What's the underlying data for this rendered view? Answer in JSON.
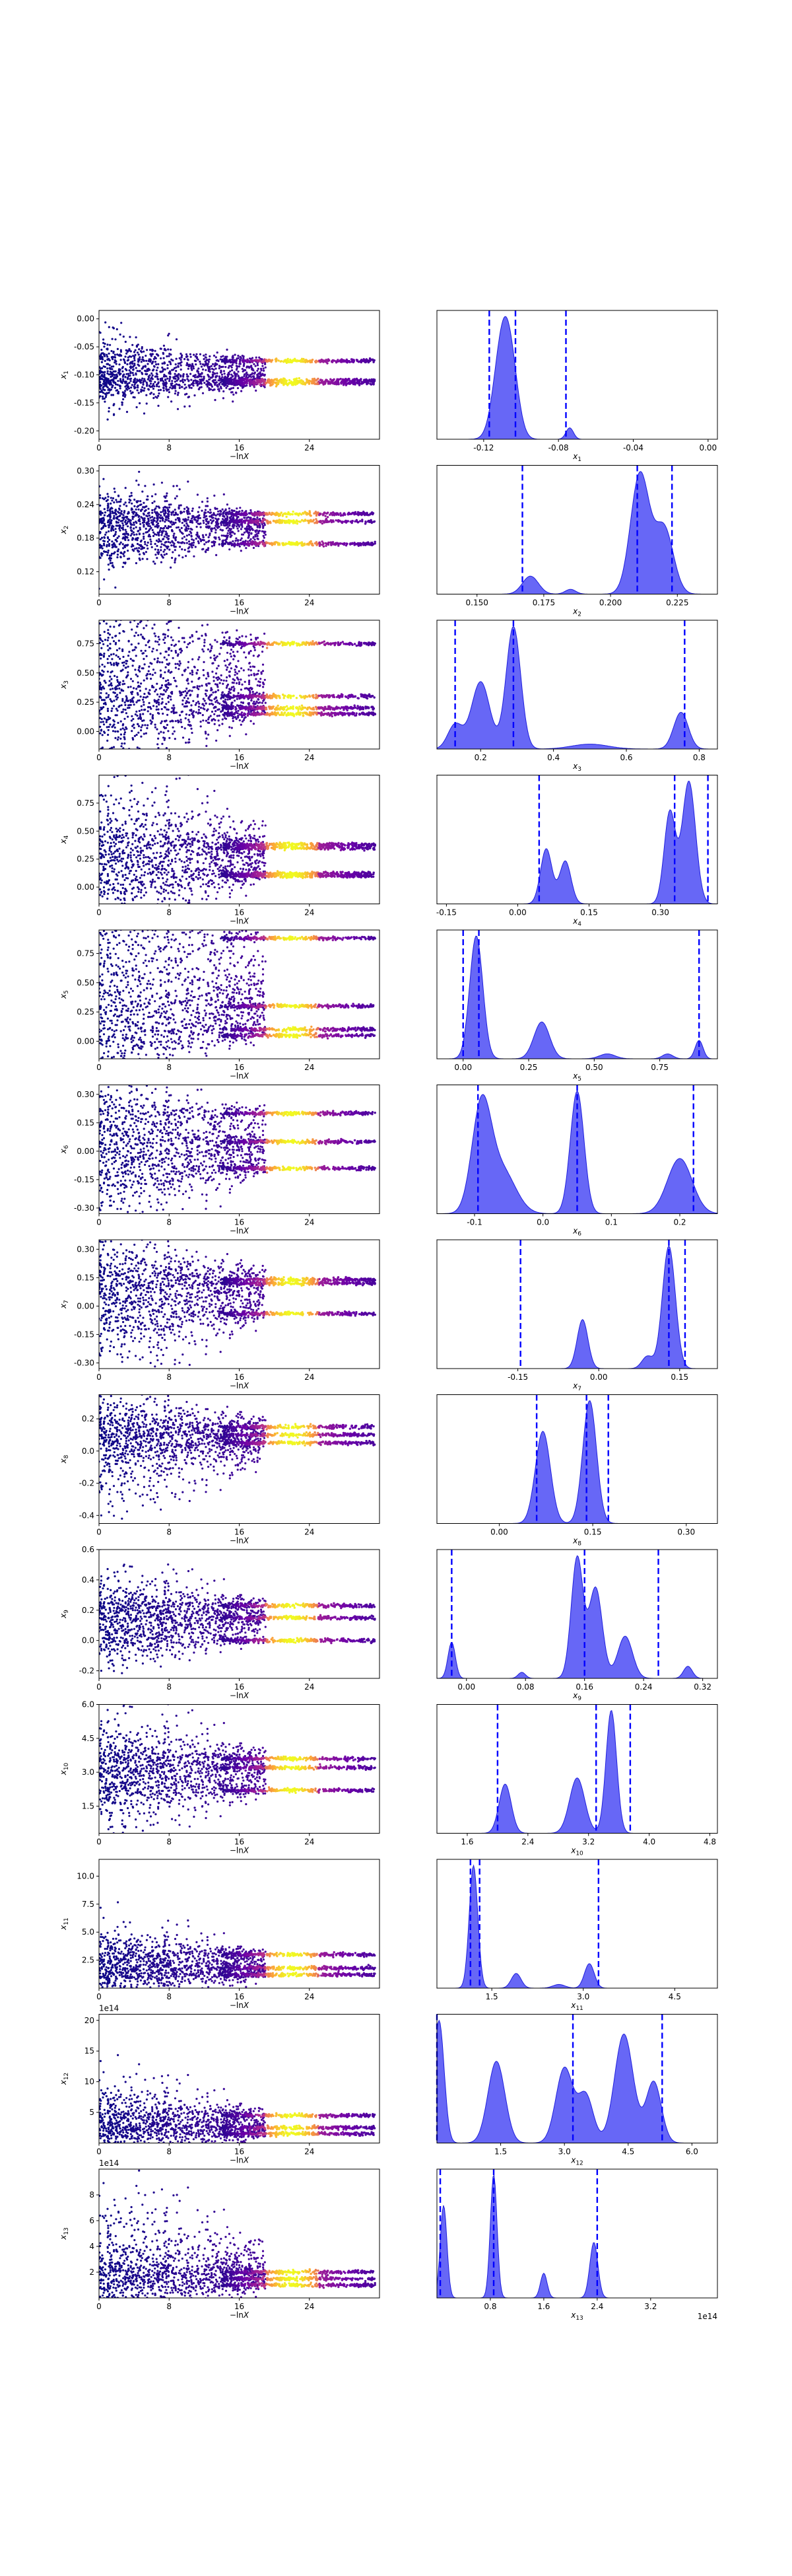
{
  "figure": {
    "description_colors": {
      "left_scatter_low": "#0d0887",
      "left_scatter_mid": "#cc4778",
      "left_scatter_high": "#f0f921",
      "kde_fill": "#4c4cf5",
      "kde_line": "#1f1fdd",
      "quantile_line": "#0000ff"
    }
  },
  "chart_data": [
    {
      "row": 1,
      "type": "scatter",
      "param": "x1",
      "xlabel": "−lnX",
      "ylabel": "x",
      "sub": "1",
      "xticks": [
        "0",
        "8",
        "16",
        "24"
      ],
      "yticks": [
        "-0.20",
        "-0.15",
        "-0.10",
        "-0.05",
        "0.00"
      ],
      "ylim": [
        -0.215,
        0.015
      ],
      "xlim": [
        0,
        32
      ],
      "bands": [
        -0.075,
        -0.11,
        -0.115
      ],
      "spread_center": -0.1,
      "spread_width": 0.07
    },
    {
      "row": 1,
      "type": "area",
      "param": "x1",
      "xlabel": "x",
      "sub": "1",
      "xticks": [
        "-0.12",
        "-0.08",
        "-0.04",
        "0.00"
      ],
      "xlim": [
        -0.145,
        0.005
      ],
      "peaks": [
        {
          "x": -0.11,
          "h": 1.0,
          "w": 0.0045
        },
        {
          "x": -0.105,
          "h": 0.5,
          "w": 0.004
        },
        {
          "x": -0.074,
          "h": 0.12,
          "w": 0.002
        }
      ],
      "quantiles": [
        -0.117,
        -0.103,
        -0.076
      ]
    },
    {
      "row": 2,
      "type": "scatter",
      "param": "x2",
      "xlabel": "−lnX",
      "ylabel": "x",
      "sub": "2",
      "xticks": [
        "0",
        "8",
        "16",
        "24"
      ],
      "yticks": [
        "0.12",
        "0.18",
        "0.24",
        "0.30"
      ],
      "ylim": [
        0.08,
        0.31
      ],
      "xlim": [
        0,
        32
      ],
      "bands": [
        0.223,
        0.21,
        0.17
      ],
      "spread_center": 0.2,
      "spread_width": 0.08
    },
    {
      "row": 2,
      "type": "area",
      "param": "x2",
      "xlabel": "x",
      "sub": "2",
      "xticks": [
        "0.150",
        "0.175",
        "0.200",
        "0.225"
      ],
      "xlim": [
        0.135,
        0.24
      ],
      "peaks": [
        {
          "x": 0.17,
          "h": 0.15,
          "w": 0.003
        },
        {
          "x": 0.185,
          "h": 0.04,
          "w": 0.002
        },
        {
          "x": 0.211,
          "h": 1.0,
          "w": 0.0035
        },
        {
          "x": 0.22,
          "h": 0.55,
          "w": 0.0035
        }
      ],
      "quantiles": [
        0.167,
        0.21,
        0.223
      ]
    },
    {
      "row": 3,
      "type": "scatter",
      "param": "x3",
      "xlabel": "−lnX",
      "ylabel": "x",
      "sub": "3",
      "xticks": [
        "0",
        "8",
        "16",
        "24"
      ],
      "yticks": [
        "0.00",
        "0.25",
        "0.50",
        "0.75"
      ],
      "ylim": [
        -0.15,
        0.95
      ],
      "xlim": [
        0,
        32
      ],
      "bands": [
        0.75,
        0.3,
        0.2,
        0.15
      ],
      "spread_center": 0.4,
      "spread_width": 0.9
    },
    {
      "row": 3,
      "type": "area",
      "param": "x3",
      "xlabel": "x",
      "sub": "3",
      "xticks": [
        "0.2",
        "0.4",
        "0.6",
        "0.8"
      ],
      "xlim": [
        0.08,
        0.85
      ],
      "peaks": [
        {
          "x": 0.13,
          "h": 0.2,
          "w": 0.02
        },
        {
          "x": 0.2,
          "h": 0.55,
          "w": 0.025
        },
        {
          "x": 0.29,
          "h": 1.0,
          "w": 0.02
        },
        {
          "x": 0.5,
          "h": 0.04,
          "w": 0.05
        },
        {
          "x": 0.75,
          "h": 0.3,
          "w": 0.02
        }
      ],
      "quantiles": [
        0.13,
        0.29,
        0.76
      ]
    },
    {
      "row": 4,
      "type": "scatter",
      "param": "x4",
      "xlabel": "−lnX",
      "ylabel": "x",
      "sub": "4",
      "xticks": [
        "0",
        "8",
        "16",
        "24"
      ],
      "yticks": [
        "0.00",
        "0.25",
        "0.50",
        "0.75"
      ],
      "ylim": [
        -0.15,
        1.0
      ],
      "xlim": [
        0,
        32
      ],
      "bands": [
        0.38,
        0.35,
        0.12,
        0.1
      ],
      "spread_center": 0.3,
      "spread_width": 0.8
    },
    {
      "row": 4,
      "type": "area",
      "param": "x4",
      "xlabel": "x",
      "sub": "4",
      "xticks": [
        "-0.15",
        "0.00",
        "0.15",
        "0.30"
      ],
      "xlim": [
        -0.17,
        0.42
      ],
      "peaks": [
        {
          "x": 0.06,
          "h": 0.45,
          "w": 0.012
        },
        {
          "x": 0.1,
          "h": 0.35,
          "w": 0.012
        },
        {
          "x": 0.32,
          "h": 0.75,
          "w": 0.012
        },
        {
          "x": 0.36,
          "h": 1.0,
          "w": 0.014
        }
      ],
      "quantiles": [
        0.045,
        0.33,
        0.4
      ]
    },
    {
      "row": 5,
      "type": "scatter",
      "param": "x5",
      "xlabel": "−lnX",
      "ylabel": "x",
      "sub": "5",
      "xticks": [
        "0",
        "8",
        "16",
        "24"
      ],
      "yticks": [
        "0.00",
        "0.25",
        "0.50",
        "0.75"
      ],
      "ylim": [
        -0.15,
        0.95
      ],
      "xlim": [
        0,
        32
      ],
      "bands": [
        0.88,
        0.3,
        0.1,
        0.05
      ],
      "spread_center": 0.4,
      "spread_width": 0.9
    },
    {
      "row": 5,
      "type": "area",
      "param": "x5",
      "xlabel": "x",
      "sub": "5",
      "xticks": [
        "0.00",
        "0.25",
        "0.50",
        "0.75"
      ],
      "xlim": [
        -0.1,
        0.97
      ],
      "peaks": [
        {
          "x": 0.05,
          "h": 1.0,
          "w": 0.025
        },
        {
          "x": 0.3,
          "h": 0.3,
          "w": 0.03
        },
        {
          "x": 0.55,
          "h": 0.04,
          "w": 0.03
        },
        {
          "x": 0.78,
          "h": 0.04,
          "w": 0.02
        },
        {
          "x": 0.9,
          "h": 0.15,
          "w": 0.015
        }
      ],
      "quantiles": [
        0.0,
        0.06,
        0.9
      ]
    },
    {
      "row": 6,
      "type": "scatter",
      "param": "x6",
      "xlabel": "−lnX",
      "ylabel": "x",
      "sub": "6",
      "xticks": [
        "0",
        "8",
        "16",
        "24"
      ],
      "yticks": [
        "-0.30",
        "-0.15",
        "0.00",
        "0.15",
        "0.30"
      ],
      "ylim": [
        -0.33,
        0.35
      ],
      "xlim": [
        0,
        32
      ],
      "bands": [
        0.2,
        0.05,
        -0.09
      ],
      "spread_center": 0.0,
      "spread_width": 0.45
    },
    {
      "row": 6,
      "type": "area",
      "param": "x6",
      "xlabel": "x",
      "sub": "6",
      "xticks": [
        "-0.1",
        "0.0",
        "0.1",
        "0.2"
      ],
      "xlim": [
        -0.155,
        0.255
      ],
      "peaks": [
        {
          "x": -0.09,
          "h": 0.85,
          "w": 0.014
        },
        {
          "x": -0.06,
          "h": 0.35,
          "w": 0.02
        },
        {
          "x": 0.05,
          "h": 1.0,
          "w": 0.01
        },
        {
          "x": 0.2,
          "h": 0.45,
          "w": 0.018
        }
      ],
      "quantiles": [
        -0.095,
        0.05,
        0.22
      ]
    },
    {
      "row": 7,
      "type": "scatter",
      "param": "x7",
      "xlabel": "−lnX",
      "ylabel": "x",
      "sub": "7",
      "xticks": [
        "0",
        "8",
        "16",
        "24"
      ],
      "yticks": [
        "-0.30",
        "-0.15",
        "0.00",
        "0.15",
        "0.30"
      ],
      "ylim": [
        -0.33,
        0.35
      ],
      "xlim": [
        0,
        32
      ],
      "bands": [
        0.14,
        0.12,
        -0.04
      ],
      "spread_center": 0.05,
      "spread_width": 0.45
    },
    {
      "row": 7,
      "type": "area",
      "param": "x7",
      "xlabel": "x",
      "sub": "7",
      "xticks": [
        "-0.15",
        "0.00",
        "0.15"
      ],
      "xlim": [
        -0.3,
        0.22
      ],
      "peaks": [
        {
          "x": -0.03,
          "h": 0.4,
          "w": 0.01
        },
        {
          "x": 0.13,
          "h": 1.0,
          "w": 0.012
        },
        {
          "x": 0.09,
          "h": 0.1,
          "w": 0.01
        }
      ],
      "quantiles": [
        -0.145,
        0.13,
        0.16
      ]
    },
    {
      "row": 8,
      "type": "scatter",
      "param": "x8",
      "xlabel": "−lnX",
      "ylabel": "x",
      "sub": "8",
      "xticks": [
        "0",
        "8",
        "16",
        "24"
      ],
      "yticks": [
        "-0.4",
        "-0.2",
        "0.0",
        "0.2"
      ],
      "ylim": [
        -0.45,
        0.35
      ],
      "xlim": [
        0,
        32
      ],
      "bands": [
        0.15,
        0.1,
        0.05
      ],
      "spread_center": 0.05,
      "spread_width": 0.45
    },
    {
      "row": 8,
      "type": "area",
      "param": "x8",
      "xlabel": "x",
      "sub": "8",
      "xticks": [
        "0.00",
        "0.15",
        "0.30"
      ],
      "xlim": [
        -0.1,
        0.35
      ],
      "peaks": [
        {
          "x": 0.07,
          "h": 0.75,
          "w": 0.012
        },
        {
          "x": 0.145,
          "h": 1.0,
          "w": 0.011
        }
      ],
      "quantiles": [
        0.06,
        0.14,
        0.175
      ]
    },
    {
      "row": 9,
      "type": "scatter",
      "param": "x9",
      "xlabel": "−lnX",
      "ylabel": "x",
      "sub": "9",
      "xticks": [
        "0",
        "8",
        "16",
        "24"
      ],
      "yticks": [
        "-0.2",
        "0.0",
        "0.2",
        "0.4",
        "0.6"
      ],
      "ylim": [
        -0.25,
        0.6
      ],
      "xlim": [
        0,
        32
      ],
      "bands": [
        0.23,
        0.15,
        0.0
      ],
      "spread_center": 0.15,
      "spread_width": 0.35
    },
    {
      "row": 9,
      "type": "area",
      "param": "x9",
      "xlabel": "x",
      "sub": "9",
      "xticks": [
        "0.00",
        "0.08",
        "0.16",
        "0.24",
        "0.32"
      ],
      "xlim": [
        -0.04,
        0.34
      ],
      "peaks": [
        {
          "x": -0.02,
          "h": 0.3,
          "w": 0.005
        },
        {
          "x": 0.075,
          "h": 0.05,
          "w": 0.005
        },
        {
          "x": 0.15,
          "h": 1.0,
          "w": 0.008
        },
        {
          "x": 0.175,
          "h": 0.75,
          "w": 0.009
        },
        {
          "x": 0.215,
          "h": 0.35,
          "w": 0.01
        },
        {
          "x": 0.3,
          "h": 0.1,
          "w": 0.006
        }
      ],
      "quantiles": [
        -0.02,
        0.16,
        0.26
      ]
    },
    {
      "row": 10,
      "type": "scatter",
      "param": "x10",
      "xlabel": "−lnX",
      "ylabel": "x",
      "sub": "10",
      "xticks": [
        "0",
        "8",
        "16",
        "24"
      ],
      "yticks": [
        "1.5",
        "3.0",
        "4.5",
        "6.0"
      ],
      "ylim": [
        0.3,
        6.0
      ],
      "xlim": [
        0,
        32
      ],
      "bands": [
        3.6,
        3.2,
        2.2
      ],
      "spread_center": 3.0,
      "spread_width": 3.0
    },
    {
      "row": 10,
      "type": "area",
      "param": "x10",
      "xlabel": "x",
      "sub": "10",
      "xticks": [
        "1.6",
        "2.4",
        "3.2",
        "4.0",
        "4.8"
      ],
      "xlim": [
        1.2,
        4.9
      ],
      "peaks": [
        {
          "x": 2.1,
          "h": 0.4,
          "w": 0.08
        },
        {
          "x": 3.05,
          "h": 0.45,
          "w": 0.1
        },
        {
          "x": 3.5,
          "h": 1.0,
          "w": 0.07
        }
      ],
      "quantiles": [
        2.0,
        3.3,
        3.75
      ]
    },
    {
      "row": 11,
      "type": "scatter",
      "param": "x11",
      "xlabel": "−lnX",
      "ylabel": "x",
      "sub": "11",
      "xticks": [
        "0",
        "8",
        "16",
        "24"
      ],
      "yticks": [
        "2.5",
        "5.0",
        "7.5",
        "10.0"
      ],
      "ylim": [
        0.0,
        11.5
      ],
      "xlim": [
        0,
        32
      ],
      "bands": [
        3.0,
        1.8,
        1.2
      ],
      "spread_center": 2.0,
      "spread_width": 4.0
    },
    {
      "row": 11,
      "type": "area",
      "param": "x11",
      "xlabel": "x",
      "sub": "11",
      "xticks": [
        "1.5",
        "3.0",
        "4.5"
      ],
      "xlim": [
        0.6,
        5.2
      ],
      "peaks": [
        {
          "x": 1.2,
          "h": 1.0,
          "w": 0.07
        },
        {
          "x": 1.9,
          "h": 0.12,
          "w": 0.08
        },
        {
          "x": 2.6,
          "h": 0.03,
          "w": 0.1
        },
        {
          "x": 3.1,
          "h": 0.2,
          "w": 0.08
        }
      ],
      "quantiles": [
        1.15,
        1.3,
        3.25
      ]
    },
    {
      "row": 12,
      "type": "scatter",
      "param": "x12",
      "xlabel": "−lnX",
      "ylabel": "x",
      "sub": "12",
      "offset": "1e14",
      "xticks": [
        "0",
        "8",
        "16",
        "24"
      ],
      "yticks": [
        "5",
        "10",
        "15",
        "20"
      ],
      "ylim": [
        0,
        21
      ],
      "xlim": [
        0,
        32
      ],
      "bands": [
        4.5,
        2.5,
        1.5
      ],
      "spread_center": 3.0,
      "spread_width": 8.0
    },
    {
      "row": 12,
      "type": "area",
      "param": "x12",
      "xlabel": "x",
      "sub": "12",
      "xticks": [
        "1.5",
        "3.0",
        "4.5",
        "6.0"
      ],
      "xlim": [
        0.0,
        6.6
      ],
      "peaks": [
        {
          "x": 0.05,
          "h": 0.9,
          "w": 0.12
        },
        {
          "x": 1.4,
          "h": 0.6,
          "w": 0.2
        },
        {
          "x": 3.0,
          "h": 0.55,
          "w": 0.2
        },
        {
          "x": 3.5,
          "h": 0.35,
          "w": 0.18
        },
        {
          "x": 4.4,
          "h": 0.8,
          "w": 0.22
        },
        {
          "x": 5.1,
          "h": 0.45,
          "w": 0.18
        }
      ],
      "quantiles": [
        0.0,
        3.2,
        5.3
      ]
    },
    {
      "row": 13,
      "type": "scatter",
      "param": "x13",
      "xlabel": "−lnX",
      "ylabel": "x",
      "sub": "13",
      "offset": "1e14",
      "xticks": [
        "0",
        "8",
        "16",
        "24"
      ],
      "yticks": [
        "2",
        "4",
        "6",
        "8"
      ],
      "ylim": [
        0,
        10
      ],
      "xlim": [
        0,
        32
      ],
      "bands": [
        2.0,
        1.5,
        1.0
      ],
      "spread_center": 2.5,
      "spread_width": 6.0
    },
    {
      "row": 13,
      "type": "area",
      "param": "x13",
      "xlabel": "x",
      "sub": "13",
      "offset": "1e14",
      "xticks": [
        "0.8",
        "1.6",
        "2.4",
        "3.2"
      ],
      "xlim": [
        0.0,
        4.2
      ],
      "peaks": [
        {
          "x": 0.1,
          "h": 0.75,
          "w": 0.05
        },
        {
          "x": 0.85,
          "h": 1.0,
          "w": 0.05
        },
        {
          "x": 1.6,
          "h": 0.2,
          "w": 0.05
        },
        {
          "x": 2.35,
          "h": 0.45,
          "w": 0.06
        }
      ],
      "quantiles": [
        0.05,
        0.85,
        2.4
      ]
    }
  ]
}
